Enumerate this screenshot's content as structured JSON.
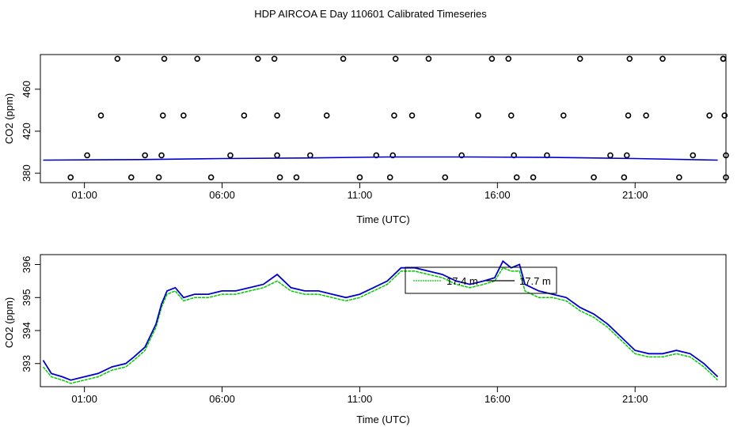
{
  "title": "HDP AIRCOA E  Day 110601  Calibrated Timeseries",
  "colors": {
    "series_blue": "#0000cc",
    "series_green": "#00cc00",
    "points": "#000000"
  },
  "chart_data": [
    {
      "type": "scatter",
      "xlabel": "Time (UTC)",
      "ylabel": "CO2 (ppm)",
      "xlim": [
        -0.6,
        24.3
      ],
      "ylim": [
        371,
        493
      ],
      "x_ticks": [
        1,
        6,
        11,
        16,
        21
      ],
      "x_tick_labels": [
        "01:00",
        "06:00",
        "11:00",
        "16:00",
        "21:00"
      ],
      "y_ticks": [
        380,
        420,
        460
      ],
      "y_tick_labels": [
        "380",
        "420",
        "460"
      ],
      "grid": false,
      "points": [
        [
          0.5,
          376
        ],
        [
          1.1,
          397
        ],
        [
          1.6,
          435
        ],
        [
          2.2,
          489
        ],
        [
          2.7,
          376
        ],
        [
          3.2,
          397
        ],
        [
          3.7,
          376
        ],
        [
          3.8,
          397
        ],
        [
          3.85,
          435
        ],
        [
          3.9,
          489
        ],
        [
          4.6,
          435
        ],
        [
          5.1,
          489
        ],
        [
          5.6,
          376
        ],
        [
          6.3,
          397
        ],
        [
          6.8,
          435
        ],
        [
          7.3,
          489
        ],
        [
          7.9,
          489
        ],
        [
          8.0,
          435
        ],
        [
          8.0,
          397
        ],
        [
          8.1,
          376
        ],
        [
          8.7,
          376
        ],
        [
          9.2,
          397
        ],
        [
          9.8,
          435
        ],
        [
          10.4,
          489
        ],
        [
          11.0,
          376
        ],
        [
          11.6,
          397
        ],
        [
          12.1,
          376
        ],
        [
          12.2,
          397
        ],
        [
          12.25,
          435
        ],
        [
          12.3,
          489
        ],
        [
          12.9,
          435
        ],
        [
          13.5,
          489
        ],
        [
          14.1,
          376
        ],
        [
          14.7,
          397
        ],
        [
          15.3,
          435
        ],
        [
          15.8,
          489
        ],
        [
          16.4,
          489
        ],
        [
          16.5,
          435
        ],
        [
          16.6,
          397
        ],
        [
          16.7,
          376
        ],
        [
          17.3,
          376
        ],
        [
          17.8,
          397
        ],
        [
          18.4,
          435
        ],
        [
          19.0,
          489
        ],
        [
          19.5,
          376
        ],
        [
          20.1,
          397
        ],
        [
          20.6,
          376
        ],
        [
          20.7,
          397
        ],
        [
          20.75,
          435
        ],
        [
          20.8,
          489
        ],
        [
          21.4,
          435
        ],
        [
          22.0,
          489
        ],
        [
          22.6,
          376
        ],
        [
          23.1,
          397
        ],
        [
          23.7,
          435
        ],
        [
          24.2,
          489
        ],
        [
          24.2,
          489
        ],
        [
          24.25,
          435
        ],
        [
          24.3,
          397
        ],
        [
          24.3,
          376
        ]
      ],
      "line": {
        "name": "",
        "x": [
          -0.5,
          3,
          6,
          9,
          12,
          15,
          18,
          21,
          24
        ],
        "y": [
          392.5,
          393,
          394,
          394.5,
          395.5,
          395.5,
          395,
          394,
          392.5
        ]
      }
    },
    {
      "type": "line",
      "xlabel": "Time (UTC)",
      "ylabel": "CO2 (ppm)",
      "xlim": [
        -0.6,
        24.3
      ],
      "ylim": [
        392.3,
        396.3
      ],
      "x_ticks": [
        1,
        6,
        11,
        16,
        21
      ],
      "x_tick_labels": [
        "01:00",
        "06:00",
        "11:00",
        "16:00",
        "21:00"
      ],
      "y_ticks": [
        393,
        394,
        395,
        396
      ],
      "y_tick_labels": [
        "393",
        "394",
        "395",
        "396"
      ],
      "grid": false,
      "legend": {
        "placement": "top-right",
        "entries": [
          "17.4 m",
          "17.7 m"
        ]
      },
      "series": [
        {
          "name": "17.7 m",
          "x": [
            -0.5,
            -0.2,
            0.2,
            0.5,
            1.0,
            1.5,
            2.0,
            2.5,
            2.8,
            3.2,
            3.6,
            3.8,
            4.0,
            4.3,
            4.6,
            5.0,
            5.5,
            6.0,
            6.5,
            7.0,
            7.5,
            8.0,
            8.5,
            9.0,
            9.5,
            10.0,
            10.5,
            11.0,
            11.5,
            12.0,
            12.5,
            13.0,
            13.5,
            14.0,
            14.5,
            15.0,
            15.5,
            15.9,
            16.2,
            16.5,
            16.8,
            17.0,
            17.5,
            18.0,
            18.5,
            19.0,
            19.5,
            20.0,
            20.5,
            21.0,
            21.5,
            22.0,
            22.5,
            23.0,
            23.5,
            24.0
          ],
          "y": [
            393.1,
            392.7,
            392.6,
            392.5,
            392.6,
            392.7,
            392.9,
            393.0,
            393.2,
            393.5,
            394.2,
            394.8,
            395.2,
            395.3,
            395.0,
            395.1,
            395.1,
            395.2,
            395.2,
            395.3,
            395.4,
            395.7,
            395.3,
            395.2,
            395.2,
            395.1,
            395.0,
            395.1,
            395.3,
            395.5,
            395.9,
            395.9,
            395.8,
            395.7,
            395.5,
            395.4,
            395.5,
            395.6,
            396.1,
            395.9,
            396.0,
            395.4,
            395.2,
            395.1,
            395.0,
            394.7,
            394.5,
            394.2,
            393.8,
            393.4,
            393.3,
            393.3,
            393.4,
            393.3,
            393.0,
            392.6
          ]
        },
        {
          "name": "17.4 m",
          "x": [
            -0.5,
            -0.2,
            0.2,
            0.5,
            1.0,
            1.5,
            2.0,
            2.5,
            2.8,
            3.2,
            3.6,
            3.8,
            4.0,
            4.3,
            4.6,
            5.0,
            5.5,
            6.0,
            6.5,
            7.0,
            7.5,
            8.0,
            8.5,
            9.0,
            9.5,
            10.0,
            10.5,
            11.0,
            11.5,
            12.0,
            12.5,
            13.0,
            13.5,
            14.0,
            14.5,
            15.0,
            15.5,
            15.9,
            16.2,
            16.5,
            16.8,
            17.0,
            17.5,
            18.0,
            18.5,
            19.0,
            19.5,
            20.0,
            20.5,
            21.0,
            21.5,
            22.0,
            22.5,
            23.0,
            23.5,
            24.0
          ],
          "y": [
            392.9,
            392.6,
            392.5,
            392.4,
            392.5,
            392.6,
            392.8,
            392.9,
            393.1,
            393.4,
            394.1,
            394.7,
            395.1,
            395.2,
            394.9,
            395.0,
            395.0,
            395.1,
            395.1,
            395.2,
            395.3,
            395.5,
            395.2,
            395.1,
            395.1,
            395.0,
            394.9,
            395.0,
            395.2,
            395.4,
            395.8,
            395.8,
            395.7,
            395.6,
            395.4,
            395.3,
            395.4,
            395.5,
            395.9,
            395.8,
            395.8,
            395.2,
            395.0,
            395.0,
            394.9,
            394.6,
            394.4,
            394.1,
            393.7,
            393.3,
            393.2,
            393.2,
            393.3,
            393.2,
            392.9,
            392.5
          ]
        }
      ]
    }
  ]
}
